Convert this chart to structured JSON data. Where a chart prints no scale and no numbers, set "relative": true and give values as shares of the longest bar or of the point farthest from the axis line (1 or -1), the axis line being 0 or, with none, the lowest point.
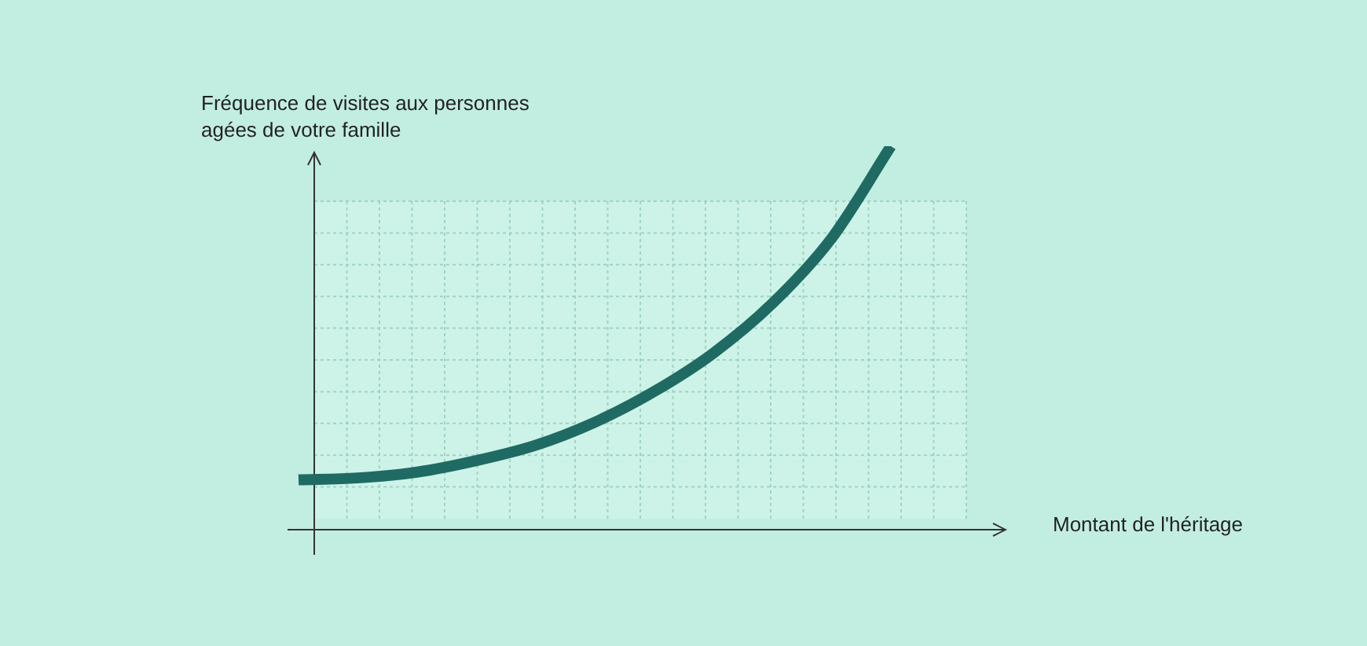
{
  "chart_data": {
    "type": "line",
    "relative": true,
    "grid": true,
    "xlabel": "Montant de l'héritage",
    "ylabel": "Fréquence de visites aux personnes agées de votre famille",
    "categories": [
      null,
      null,
      null,
      null,
      null,
      null,
      null,
      null,
      null,
      null,
      null
    ],
    "series": [
      {
        "color": "#1f6b63",
        "values": [
          0.13,
          0.135,
          0.15,
          0.18,
          0.22,
          0.28,
          0.36,
          0.46,
          0.59,
          0.76,
          1
        ]
      }
    ]
  }
}
